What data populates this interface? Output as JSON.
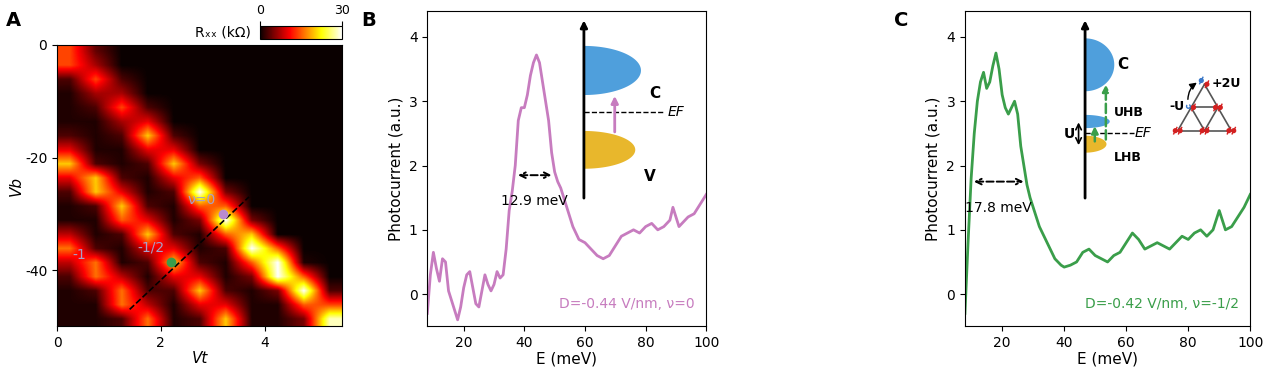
{
  "chart_data": [
    {
      "type": "heatmap",
      "panel": "A",
      "xlabel": "Vt",
      "ylabel": "Vb",
      "xlim": [
        0,
        5.5
      ],
      "ylim": [
        -50,
        0
      ],
      "xticks": [
        0,
        2,
        4
      ],
      "yticks": [
        0,
        -20,
        -40
      ],
      "cells": [
        [
          14,
          4,
          0,
          0,
          0,
          0,
          0,
          0,
          0,
          0,
          0
        ],
        [
          14,
          7,
          0,
          0,
          0,
          0,
          0,
          0,
          0,
          0,
          0
        ],
        [
          3,
          14,
          3,
          0,
          0,
          0,
          0,
          0,
          0,
          0,
          0
        ],
        [
          1,
          7,
          7,
          0,
          0,
          0,
          0,
          0,
          0,
          0,
          0
        ],
        [
          1,
          3,
          14,
          3,
          0,
          0,
          0,
          0,
          0,
          0,
          0
        ],
        [
          1,
          1,
          7,
          10,
          0,
          0,
          0,
          0,
          0,
          0,
          0
        ],
        [
          3,
          1,
          3,
          20,
          3,
          0,
          0,
          0,
          0,
          0,
          0
        ],
        [
          10,
          1,
          1,
          10,
          10,
          0,
          0,
          0,
          0,
          0,
          0
        ],
        [
          20,
          3,
          1,
          3,
          20,
          5,
          0,
          0,
          0,
          0,
          0
        ],
        [
          10,
          20,
          3,
          1,
          10,
          15,
          0,
          0,
          0,
          0,
          0
        ],
        [
          3,
          20,
          10,
          1,
          3,
          30,
          5,
          0,
          0,
          0,
          0
        ],
        [
          1,
          3,
          20,
          3,
          1,
          15,
          15,
          0,
          0,
          0,
          0
        ],
        [
          1,
          1,
          15,
          10,
          1,
          5,
          30,
          5,
          0,
          0,
          0
        ],
        [
          8,
          1,
          3,
          20,
          3,
          1,
          15,
          20,
          0,
          0,
          0
        ],
        [
          16,
          3,
          1,
          10,
          10,
          1,
          3,
          30,
          15,
          0,
          0
        ],
        [
          8,
          16,
          1,
          3,
          20,
          3,
          1,
          15,
          30,
          1,
          0
        ],
        [
          3,
          16,
          8,
          1,
          10,
          10,
          1,
          5,
          30,
          15,
          0
        ],
        [
          1,
          3,
          16,
          3,
          3,
          20,
          3,
          1,
          5,
          30,
          3
        ],
        [
          1,
          1,
          16,
          8,
          1,
          10,
          10,
          1,
          1,
          15,
          14
        ],
        [
          1,
          1,
          3,
          16,
          1,
          3,
          20,
          1,
          1,
          5,
          28
        ]
      ],
      "colorbar": {
        "label": "Rₓₓ (kΩ)",
        "range": [
          0,
          30
        ],
        "ticks": [
          0,
          30
        ]
      },
      "points": [
        {
          "label": "ν=0",
          "x": 3.2,
          "y": -30,
          "color": "#b98bd0"
        },
        {
          "label": "-1/2",
          "x": 2.2,
          "y": -38.5,
          "color": "#3a9e4a"
        }
      ],
      "labels": [
        {
          "text": "-1",
          "x": 0.3,
          "y": -38
        }
      ],
      "line": {
        "x": [
          1.4,
          3.7
        ],
        "y": [
          -47,
          -27
        ],
        "line_style": "dashed"
      }
    },
    {
      "type": "line",
      "panel": "B",
      "xlabel": "E (meV)",
      "ylabel": "Photocurrent (a.u.)",
      "xlim": [
        8,
        100
      ],
      "ylim": [
        -0.5,
        4.4
      ],
      "xticks": [
        20,
        40,
        60,
        80,
        100
      ],
      "yticks": [
        0,
        1,
        2,
        3,
        4
      ],
      "color": "#c77cbf",
      "x": [
        8,
        9,
        10,
        11,
        12,
        13,
        14,
        15,
        16,
        17,
        18,
        19,
        20,
        21,
        22,
        23,
        24,
        25,
        26,
        27,
        28,
        29,
        30,
        31,
        32,
        33,
        34,
        35,
        36,
        37,
        38,
        39,
        40,
        41,
        42,
        43,
        44,
        45,
        46,
        47,
        48,
        49,
        50,
        51,
        52,
        53,
        54,
        55,
        56,
        58,
        60,
        62,
        64,
        66,
        68,
        70,
        72,
        74,
        76,
        78,
        80,
        82,
        84,
        86,
        88,
        89,
        90,
        91,
        92,
        94,
        96,
        98,
        100
      ],
      "values": [
        -0.3,
        0.3,
        0.65,
        0.4,
        0.2,
        0.55,
        0.5,
        0.05,
        -0.1,
        -0.25,
        -0.4,
        -0.2,
        0.1,
        0.3,
        0.35,
        0.1,
        -0.15,
        -0.2,
        0.05,
        0.3,
        0.15,
        0.05,
        0.15,
        0.35,
        0.25,
        0.3,
        0.7,
        1.3,
        1.6,
        2.0,
        2.7,
        2.9,
        2.9,
        3.1,
        3.4,
        3.6,
        3.72,
        3.6,
        3.3,
        3.0,
        2.7,
        2.2,
        1.9,
        1.75,
        1.65,
        1.5,
        1.35,
        1.2,
        1.05,
        0.85,
        0.8,
        0.7,
        0.6,
        0.55,
        0.6,
        0.75,
        0.9,
        0.95,
        1.0,
        0.95,
        1.05,
        1.1,
        1.0,
        1.05,
        1.15,
        1.35,
        1.2,
        1.05,
        1.1,
        1.2,
        1.25,
        1.4,
        1.55
      ],
      "fwhm": {
        "from": 37,
        "to": 49.9,
        "y": 1.85,
        "label": "12.9 meV"
      },
      "annotation": "D=-0.44 V/nm, ν=0",
      "inset": {
        "upper_band": "C",
        "lower_band": "V",
        "fermi_level": "EF"
      }
    },
    {
      "type": "line",
      "panel": "C",
      "xlabel": "E (meV)",
      "ylabel": "Photocurrent (a.u.)",
      "xlim": [
        8,
        100
      ],
      "ylim": [
        -0.5,
        4.4
      ],
      "xticks": [
        20,
        40,
        60,
        80,
        100
      ],
      "yticks": [
        0,
        1,
        2,
        3,
        4
      ],
      "color": "#3a9e4a",
      "x": [
        8,
        9,
        10,
        11,
        12,
        13,
        14,
        15,
        16,
        17,
        18,
        19,
        20,
        21,
        22,
        23,
        24,
        25,
        26,
        27,
        28,
        29,
        30,
        31,
        32,
        33,
        34,
        35,
        36,
        37,
        38,
        39,
        40,
        42,
        44,
        46,
        48,
        50,
        52,
        54,
        56,
        58,
        60,
        62,
        64,
        66,
        68,
        70,
        72,
        74,
        76,
        78,
        80,
        82,
        84,
        86,
        88,
        89,
        90,
        91,
        92,
        94,
        96,
        98,
        100
      ],
      "values": [
        -0.3,
        0.8,
        1.8,
        2.5,
        3.0,
        3.3,
        3.45,
        3.2,
        3.3,
        3.55,
        3.75,
        3.5,
        3.1,
        2.9,
        2.8,
        2.9,
        3.0,
        2.8,
        2.3,
        2.0,
        1.7,
        1.5,
        1.35,
        1.2,
        1.05,
        0.95,
        0.85,
        0.75,
        0.65,
        0.55,
        0.5,
        0.45,
        0.42,
        0.45,
        0.5,
        0.65,
        0.7,
        0.6,
        0.55,
        0.5,
        0.6,
        0.65,
        0.8,
        0.95,
        0.85,
        0.7,
        0.75,
        0.8,
        0.75,
        0.7,
        0.8,
        0.9,
        0.85,
        0.95,
        1.0,
        0.9,
        1.0,
        1.15,
        1.3,
        1.15,
        1.0,
        1.05,
        1.2,
        1.35,
        1.55
      ],
      "fwhm": {
        "from": 10,
        "to": 27.8,
        "y": 1.75,
        "label": "17.8 meV"
      },
      "annotation": "D=-0.42 V/nm, ν=-1/2",
      "inset": {
        "upper_band": "C",
        "upper_hubbard": "UHB",
        "lower_hubbard": "LHB",
        "gap": "U",
        "fermi_level": "EF"
      },
      "lattice": {
        "removed": "-U",
        "added": "+2U"
      }
    }
  ]
}
